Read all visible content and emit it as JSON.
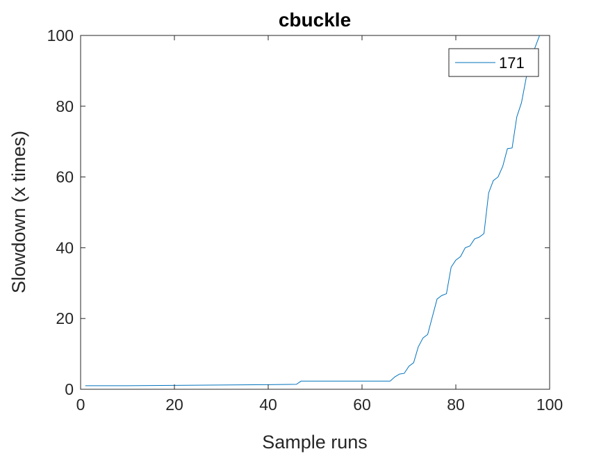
{
  "chart_data": {
    "type": "line",
    "title": "cbuckle",
    "xlabel": "Sample runs",
    "ylabel": "Slowdown (x times)",
    "xlim": [
      0,
      100
    ],
    "ylim": [
      0,
      100
    ],
    "xticks": [
      0,
      20,
      40,
      60,
      80,
      100
    ],
    "yticks": [
      0,
      20,
      40,
      60,
      80,
      100
    ],
    "grid": false,
    "legend_position": "top-right",
    "series": [
      {
        "name": "171",
        "color": "#0072BD",
        "x": [
          1,
          10,
          20,
          30,
          40,
          46,
          47,
          50,
          55,
          60,
          65,
          66,
          67,
          68,
          69,
          70,
          71,
          72,
          73,
          74,
          75,
          76,
          77,
          78,
          79,
          80,
          81,
          82,
          83,
          84,
          85,
          86,
          87,
          88,
          89,
          90,
          91,
          92,
          93,
          94,
          95,
          96,
          97,
          98,
          99,
          100
        ],
        "y": [
          1.0,
          1.0,
          1.1,
          1.2,
          1.3,
          1.4,
          2.3,
          2.3,
          2.3,
          2.3,
          2.3,
          2.3,
          3.5,
          4.3,
          4.5,
          6.5,
          7.5,
          12,
          14.5,
          15.5,
          20.5,
          25.5,
          26.5,
          27,
          34.5,
          36.5,
          37.5,
          40,
          40.5,
          42.5,
          43,
          44,
          55.5,
          59,
          60,
          63,
          68,
          68.2,
          77,
          81,
          88,
          93.5,
          97,
          100.5,
          101,
          101
        ]
      }
    ]
  }
}
